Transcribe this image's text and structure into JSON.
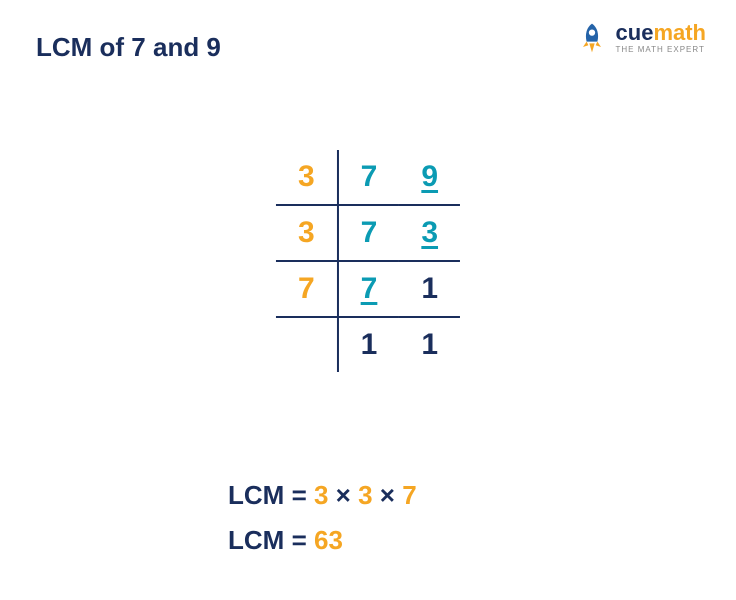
{
  "title": "LCM of 7 and 9",
  "colors": {
    "orange": "#f5a623",
    "navy": "#1a2e5c",
    "teal": "#0b9bb3",
    "line": "#1a2e5c",
    "logo_rocket_body": "#2563a8",
    "logo_rocket_flame": "#f5a623"
  },
  "logo": {
    "brand_cue": "cue",
    "brand_math": "math",
    "tagline": "THE MATH EXPERT"
  },
  "table": {
    "line_color": "#1a2e5c",
    "rows": [
      {
        "divisor": "3",
        "a": "7",
        "b": "9",
        "a_underlined": false,
        "b_underlined": true
      },
      {
        "divisor": "3",
        "a": "7",
        "b": "3",
        "a_underlined": false,
        "b_underlined": true
      },
      {
        "divisor": "7",
        "a": "7",
        "b": "1",
        "a_underlined": true,
        "b_underlined": false
      },
      {
        "divisor": "",
        "a": "1",
        "b": "1",
        "a_underlined": false,
        "b_underlined": false
      }
    ],
    "divisor_color": "#f5a623",
    "value_color": "#0b9bb3",
    "one_color": "#1a2e5c",
    "fontsize": 30
  },
  "result": {
    "label": "LCM",
    "eq": "=",
    "factors": [
      "3",
      "3",
      "7"
    ],
    "times": "×",
    "product": "63",
    "label_color": "#1a2e5c",
    "factor_color": "#f5a623",
    "fontsize": 26
  }
}
